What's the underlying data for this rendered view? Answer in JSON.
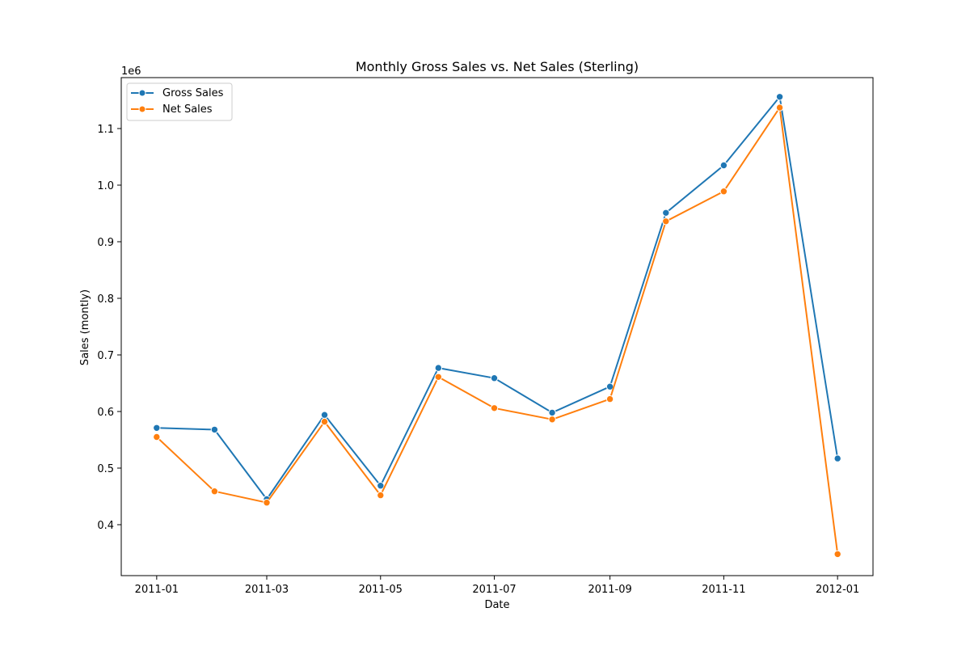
{
  "chart_data": {
    "type": "line",
    "title": "Monthly Gross Sales vs. Net Sales (Sterling)",
    "xlabel": "Date",
    "ylabel": "Sales (montly)",
    "y_offset_label": "1e6",
    "x_type": "date",
    "x": [
      "2011-01-01",
      "2011-02-01",
      "2011-03-01",
      "2011-04-01",
      "2011-05-01",
      "2011-06-01",
      "2011-07-01",
      "2011-08-01",
      "2011-09-01",
      "2011-10-01",
      "2011-11-01",
      "2011-12-01",
      "2012-01-01"
    ],
    "xlim": [
      "2010-12-13",
      "2012-01-20"
    ],
    "xticks": [
      "2011-01",
      "2011-03",
      "2011-05",
      "2011-07",
      "2011-09",
      "2011-11",
      "2012-01"
    ],
    "ylim": [
      0.31,
      1.19
    ],
    "yticks": [
      "0.4",
      "0.5",
      "0.6",
      "0.7",
      "0.8",
      "0.9",
      "1.0",
      "1.1"
    ],
    "grid": false,
    "legend_position": "top-left",
    "series": [
      {
        "name": "Gross Sales",
        "color": "#1f77b4",
        "marker": "circle",
        "values": [
          0.571,
          0.568,
          0.445,
          0.594,
          0.469,
          0.677,
          0.659,
          0.598,
          0.644,
          0.951,
          1.035,
          1.156,
          0.517
        ]
      },
      {
        "name": "Net Sales",
        "color": "#ff7f0e",
        "marker": "circle",
        "values": [
          0.555,
          0.459,
          0.439,
          0.582,
          0.452,
          0.661,
          0.606,
          0.586,
          0.622,
          0.936,
          0.989,
          1.137,
          0.348
        ]
      }
    ]
  }
}
